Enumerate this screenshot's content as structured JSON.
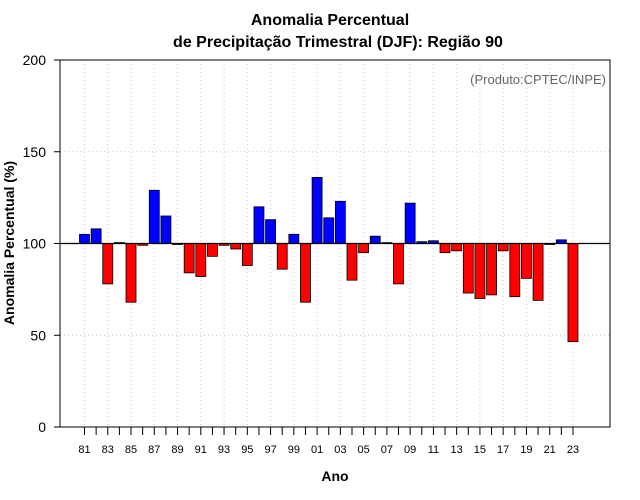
{
  "chart_data": {
    "type": "bar",
    "title_line1": "Anomalia Percentual",
    "title_line2": "de Precipitação Trimestral (DJF): Região 90",
    "xlabel": "Ano",
    "ylabel": "Anomalia Percentual (%)",
    "credit": "(Produto:CPTEC/INPE)",
    "ylim": [
      0,
      200
    ],
    "yticks": [
      "0",
      "50",
      "100",
      "150",
      "200"
    ],
    "baseline": 100,
    "x": [
      1981,
      1982,
      1983,
      1984,
      1985,
      1986,
      1987,
      1988,
      1989,
      1990,
      1991,
      1992,
      1993,
      1994,
      1995,
      1996,
      1997,
      1998,
      1999,
      2000,
      2001,
      2002,
      2003,
      2004,
      2005,
      2006,
      2007,
      2008,
      2009,
      2010,
      2011,
      2012,
      2013,
      2014,
      2015,
      2016,
      2017,
      2018,
      2019,
      2020,
      2021,
      2022,
      2023
    ],
    "xtick_labels": [
      "81",
      "83",
      "85",
      "87",
      "89",
      "91",
      "93",
      "95",
      "97",
      "99",
      "01",
      "03",
      "05",
      "07",
      "09",
      "11",
      "13",
      "15",
      "17",
      "19",
      "21",
      "23"
    ],
    "values": [
      105,
      108,
      78,
      100.5,
      68,
      99,
      129,
      115,
      100,
      84,
      82,
      93,
      99,
      97,
      88,
      120,
      113,
      86,
      105,
      68,
      136,
      114,
      123,
      80,
      95,
      104,
      100.5,
      78,
      122,
      101,
      101.5,
      95,
      96,
      73,
      70,
      72,
      96,
      71,
      81,
      69,
      99.5,
      102,
      46.5
    ],
    "colors": {
      "positive": "#0000ff",
      "negative": "#ff0000",
      "stroke": "#000000",
      "grid": "#cccccc"
    }
  }
}
